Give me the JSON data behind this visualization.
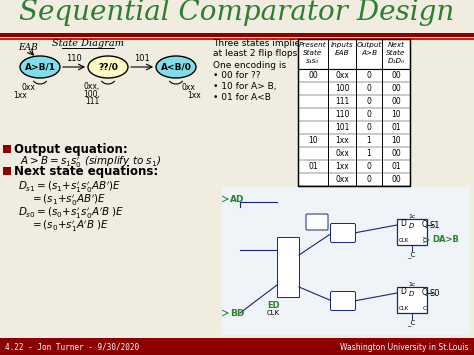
{
  "title": "Sequential Comparator Design",
  "title_color": "#2e7d32",
  "title_fontsize": 20,
  "bg_color": "#f0ece0",
  "footer_bg": "#8b0000",
  "footer_left": "4.22 - Jon Turner - 9/30/2020",
  "footer_right": "Washington University in St.Louis",
  "footer_color": "#ffffff",
  "state_diagram_label": "State Diagram",
  "eab_label": "EAB",
  "state1_label": "A>B/1",
  "state2_label": "??/0",
  "state3_label": "A<B/0",
  "state1_color": "#80deea",
  "state2_color": "#fff9c4",
  "state3_color": "#80deea",
  "table_rows": [
    [
      "00",
      "0xx",
      "0",
      "00"
    ],
    [
      "",
      "100",
      "0",
      "00"
    ],
    [
      "",
      "111",
      "0",
      "00"
    ],
    [
      "",
      "110",
      "0",
      "10"
    ],
    [
      "",
      "101",
      "0",
      "01"
    ],
    [
      "10",
      "1xx",
      "1",
      "10"
    ],
    [
      "",
      "0xx",
      "1",
      "00"
    ],
    [
      "01",
      "1xx",
      "0",
      "01"
    ],
    [
      "",
      "0xx",
      "0",
      "00"
    ]
  ],
  "red_line_color": "#8b0000",
  "dark_red": "#8b0000",
  "navy": "#1a237e",
  "green": "#2e7d32"
}
